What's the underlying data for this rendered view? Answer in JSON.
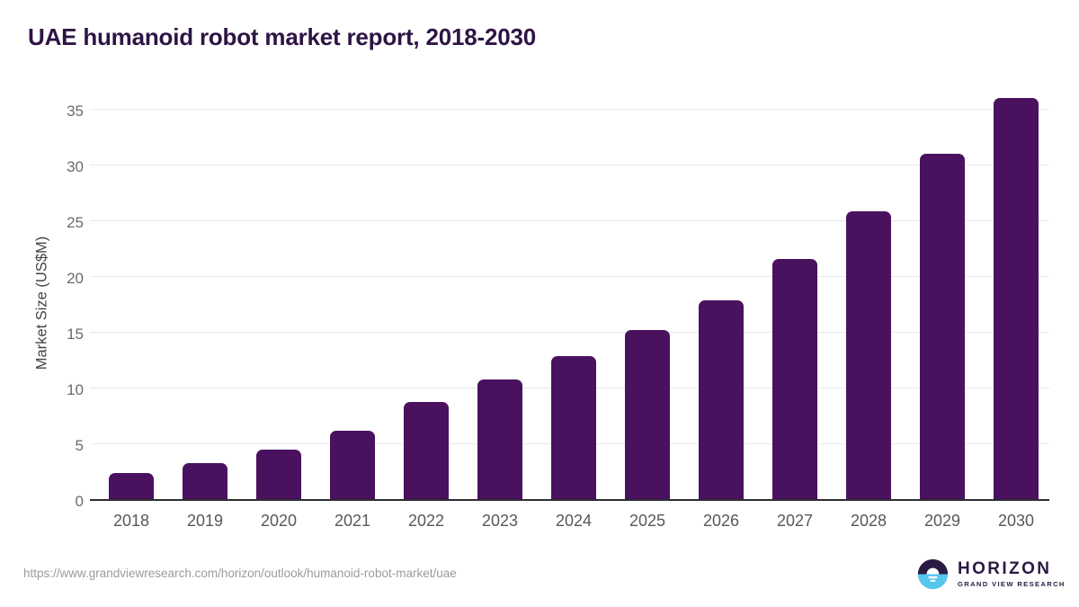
{
  "header": {
    "title": "UAE humanoid robot market report, 2018-2030"
  },
  "chart_data": {
    "type": "bar",
    "title": "UAE humanoid robot market report, 2018-2030",
    "categories": [
      "2018",
      "2019",
      "2020",
      "2021",
      "2022",
      "2023",
      "2024",
      "2025",
      "2026",
      "2027",
      "2028",
      "2029",
      "2030"
    ],
    "values": [
      2.3,
      3.2,
      4.4,
      6.1,
      8.7,
      10.7,
      12.8,
      15.2,
      17.8,
      21.5,
      25.8,
      31.0,
      36.0
    ],
    "xlabel": "",
    "ylabel": "Market Size (US$M)",
    "ylim": [
      0,
      35
    ],
    "yticks": [
      0,
      5,
      10,
      15,
      20,
      25,
      30,
      35
    ],
    "grid": true,
    "legend": "none",
    "bar_color": "#4a115e"
  },
  "footer": {
    "source_url": "https://www.grandviewresearch.com/horizon/outlook/humanoid-robot-market/uae",
    "logo": {
      "name": "HORIZON",
      "subtitle": "GRAND VIEW RESEARCH"
    }
  },
  "colors": {
    "title": "#2e1445",
    "bar": "#4a115e",
    "grid": "#e9e9ec",
    "axis_line": "#2e2e30",
    "tick_text": "#6b6b6b",
    "xlabel_text": "#58585c",
    "ylabel_text": "#434347",
    "url_text": "#9c9c9e",
    "logo_dark": "#2b1a44",
    "logo_blue": "#55c6ee"
  }
}
